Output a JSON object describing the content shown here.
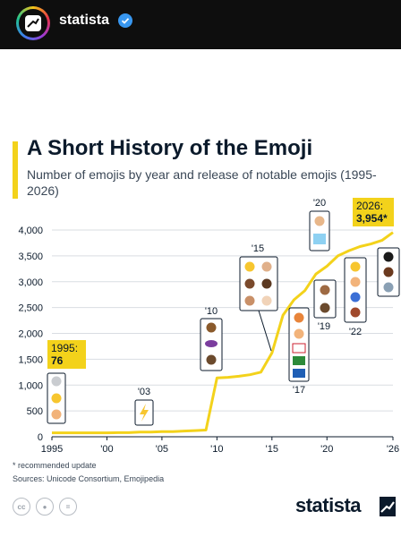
{
  "header": {
    "account_name": "statista",
    "avatar_icon": "statista-logo-icon",
    "verified_icon": "verified-badge-icon"
  },
  "chart_header": {
    "title": "A Short History of the Emoji",
    "subtitle": "Number of emojis by year and release of notable emojis (1995-2026)"
  },
  "callouts": {
    "start": {
      "year": "1995:",
      "value": "76"
    },
    "end": {
      "year": "2026:",
      "value": "3,954*"
    }
  },
  "release_labels": [
    "'03",
    "'10",
    "'15",
    "'17",
    "'19",
    "'20",
    "'22"
  ],
  "emoji_groups": [
    {
      "year": "1995",
      "icons": [
        "skull-emoji-icon",
        "smiley-emoji-icon",
        "peace-hand-emoji-icon"
      ]
    },
    {
      "year": "2003",
      "icons": [
        "high-voltage-emoji-icon"
      ]
    },
    {
      "year": "2010",
      "icons": [
        "pile-of-poo-emoji-icon",
        "eggplant-emoji-icon",
        "couple-emoji-icon"
      ]
    },
    {
      "year": "2015",
      "icons": [
        "thumbs-up-skin-tone-emoji-icons"
      ]
    },
    {
      "year": "2017",
      "icons": [
        "red-haired-person-emoji-icon",
        "england-flag-emoji-icon",
        "wales-flag-emoji-icon",
        "scotland-flag-emoji-icon"
      ]
    },
    {
      "year": "2019",
      "icons": [
        "interracial-couple-emoji-icon",
        "holding-hands-emoji-icon"
      ]
    },
    {
      "year": "2020",
      "icons": [
        "transgender-flag-emoji-icon",
        "person-emoji-icon"
      ]
    },
    {
      "year": "2022",
      "icons": [
        "saluting-face-emoji-icon",
        "heart-hands-emoji-icon",
        "hamsa-emoji-icon",
        "beans-emoji-icon"
      ]
    },
    {
      "year": "2026",
      "icons": [
        "orca-emoji-icon",
        "bigfoot-emoji-icon",
        "landslide-emoji-icon"
      ]
    }
  ],
  "footnote": "* recommended update",
  "source": "Sources: Unicode Consortium, Emojipedia",
  "license_icons": [
    "cc-icon",
    "by-icon",
    "equals-icon"
  ],
  "brand": "statista",
  "colors": {
    "line": "#f3d21b",
    "text": "#0b1a2b",
    "grid": "#d9dde2",
    "topbar": "#0e0e0e",
    "verified": "#3897f0"
  },
  "chart_data": {
    "type": "line",
    "title": "A Short History of the Emoji",
    "subtitle": "Number of emojis by year and release of notable emojis (1995-2026)",
    "xlabel": "",
    "ylabel": "",
    "x": [
      1995,
      1996,
      1997,
      1998,
      1999,
      2000,
      2001,
      2002,
      2003,
      2004,
      2005,
      2006,
      2007,
      2008,
      2009,
      2010,
      2011,
      2012,
      2013,
      2014,
      2015,
      2016,
      2017,
      2018,
      2019,
      2020,
      2021,
      2022,
      2023,
      2024,
      2025,
      2026
    ],
    "series": [
      {
        "values": [
          76,
          76,
          76,
          76,
          76,
          76,
          80,
          80,
          90,
          90,
          100,
          100,
          110,
          120,
          130,
          1140,
          1150,
          1170,
          1200,
          1250,
          1620,
          2350,
          2650,
          2830,
          3150,
          3300,
          3500,
          3600,
          3680,
          3730,
          3800,
          3954
        ]
      }
    ],
    "xlim": [
      1995,
      2026
    ],
    "ylim": [
      0,
      4000
    ],
    "x_ticks": [
      "1995",
      "'00",
      "'05",
      "'10",
      "'15",
      "'20",
      "'26"
    ],
    "x_tick_values": [
      1995,
      2000,
      2005,
      2010,
      2015,
      2020,
      2026
    ],
    "y_ticks": [
      "0",
      "500",
      "1,000",
      "1,500",
      "2,000",
      "2,500",
      "3,000",
      "3,500",
      "4,000"
    ],
    "y_tick_values": [
      0,
      500,
      1000,
      1500,
      2000,
      2500,
      3000,
      3500,
      4000
    ],
    "grid": true,
    "legend": "none"
  }
}
